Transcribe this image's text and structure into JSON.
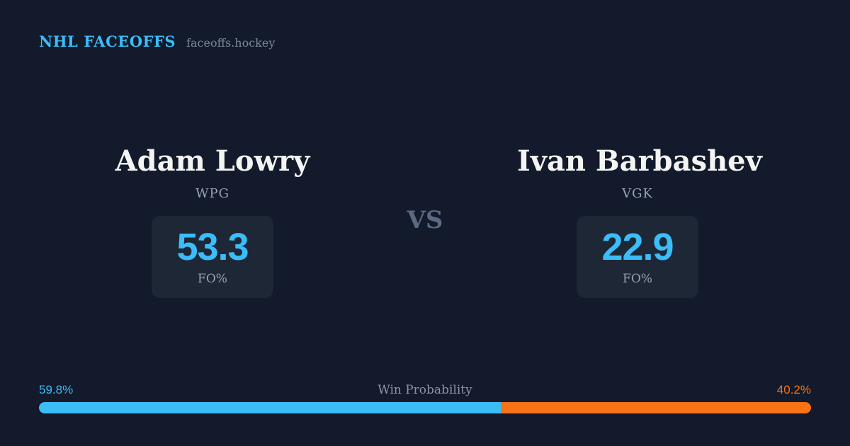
{
  "header": {
    "brand": "NHL FACEOFFS",
    "site": "faceoffs.hockey"
  },
  "matchup": {
    "vs_label": "VS",
    "players": [
      {
        "name": "Adam Lowry",
        "team": "WPG",
        "stat_value": "53.3",
        "stat_label": "FO%"
      },
      {
        "name": "Ivan Barbashev",
        "team": "VGK",
        "stat_value": "22.9",
        "stat_label": "FO%"
      }
    ]
  },
  "win_probability": {
    "label": "Win Probability",
    "left_label": "59.8%",
    "right_label": "40.2%",
    "left_width": "59.8%",
    "right_width": "40.2%"
  },
  "colors": {
    "background": "#121a2b",
    "card_background": "#1d2736",
    "accent_blue": "#3bbdf8",
    "accent_orange": "#f97316",
    "name_white": "#f4f5f3",
    "muted_gray": "#99a2b2",
    "vs_gray": "#5b6983"
  },
  "chart_data": {
    "type": "bar",
    "subtype": "stacked-horizontal-probability",
    "title": "Win Probability",
    "range": [
      0,
      100
    ],
    "segments": [
      {
        "label": "Adam Lowry (WPG)",
        "value": 59.8,
        "color": "#3bbdf8"
      },
      {
        "label": "Ivan Barbashev (VGK)",
        "value": 40.2,
        "color": "#f97316"
      }
    ],
    "player_stats": [
      {
        "player": "Adam Lowry",
        "team": "WPG",
        "metric": "FO%",
        "value": 53.3
      },
      {
        "player": "Ivan Barbashev",
        "team": "VGK",
        "metric": "FO%",
        "value": 22.9
      }
    ]
  }
}
